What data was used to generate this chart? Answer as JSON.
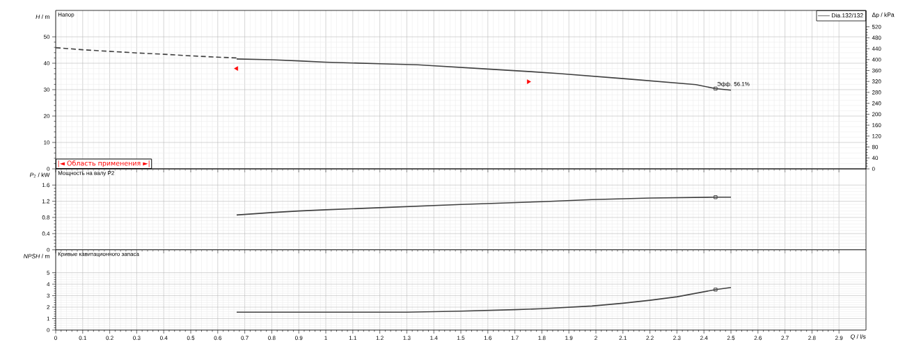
{
  "chart_data": [
    {
      "type": "line",
      "title": "Напор",
      "ylabel": "*H* / m",
      "y2label": "Δp / kPa",
      "xlim": [
        0,
        3
      ],
      "xticks": [
        0,
        0.1,
        0.2,
        0.3,
        0.4,
        0.5,
        0.6,
        0.7,
        0.8,
        0.9,
        1,
        1.1,
        1.2,
        1.3,
        1.4,
        1.5,
        1.6,
        1.7,
        1.8,
        1.9,
        2,
        2.1,
        2.2,
        2.3,
        2.4,
        2.5,
        2.6,
        2.7,
        2.8,
        2.9
      ],
      "ylim": [
        0,
        60
      ],
      "yticks": [
        0,
        10,
        20,
        30,
        40,
        50
      ],
      "y2lim": [
        0,
        580
      ],
      "y2ticks": [
        0,
        40,
        80,
        120,
        160,
        200,
        240,
        280,
        320,
        360,
        400,
        440,
        480,
        520
      ],
      "grid": true,
      "legend": "top right",
      "tick_labels": "y",
      "annotations": [
        {
          "text": "Эфф. 56.1%",
          "x": 2.443,
          "y": 30.4
        },
        "|◄ Область применения ►|"
      ],
      "series": [
        {
          "x": [
            0,
            0.1,
            0.2,
            0.3,
            0.4,
            0.5,
            0.6,
            0.67
          ],
          "values": [
            45.9,
            45.1,
            44.5,
            43.9,
            43.4,
            42.8,
            42.3,
            42.0
          ],
          "color": "#404040",
          "line_style": "dashed"
        },
        {
          "name": "Dia.132/132",
          "x": [
            0.67,
            0.8,
            0.9,
            1.0,
            1.2,
            1.34,
            1.6,
            1.76,
            1.86,
            2.11,
            2.37,
            2.443,
            2.5
          ],
          "values": [
            41.6,
            41.3,
            40.9,
            40.4,
            39.8,
            39.4,
            37.8,
            36.8,
            36.1,
            34.1,
            31.9,
            30.4,
            29.8
          ],
          "color": "#404040"
        },
        {
          "type": "scatter",
          "marker": "square",
          "x": [
            2.443
          ],
          "values": [
            30.4
          ],
          "color": "#404040"
        },
        {
          "type": "scatter",
          "marker": "triangle",
          "x": [
            0.67,
            1.75
          ],
          "values": [
            38,
            33
          ],
          "color": "#ff0000"
        }
      ]
    },
    {
      "type": "line",
      "title": "Мощность на валу P2",
      "ylabel": "*P*$_{2}$ / kW",
      "xlim": [
        0,
        3
      ],
      "xticks": [
        0,
        0.1,
        0.2,
        0.3,
        0.4,
        0.5,
        0.6,
        0.7,
        0.8,
        0.9,
        1,
        1.1,
        1.2,
        1.3,
        1.4,
        1.5,
        1.6,
        1.7,
        1.8,
        1.9,
        2,
        2.1,
        2.2,
        2.3,
        2.4,
        2.5,
        2.6,
        2.7,
        2.8,
        2.9
      ],
      "ylim": [
        0,
        2
      ],
      "yticks": [
        0,
        0.4,
        0.8,
        1.2,
        1.6
      ],
      "grid": true,
      "tick_labels": "y",
      "series": [
        {
          "x": [
            0.67,
            0.8,
            0.9,
            1.0,
            1.2,
            1.5,
            1.8,
            1.985,
            2.2,
            2.443,
            2.5
          ],
          "values": [
            0.86,
            0.92,
            0.96,
            0.99,
            1.04,
            1.12,
            1.19,
            1.24,
            1.28,
            1.3,
            1.3
          ],
          "color": "#404040"
        },
        {
          "type": "scatter",
          "marker": "square",
          "x": [
            2.443
          ],
          "values": [
            1.3
          ],
          "color": "#404040"
        }
      ]
    },
    {
      "type": "line",
      "title": "Кривые кавитационного запаса",
      "ylabel": "*NPSH* / m",
      "xlabel": "*Q* / l/s",
      "xlim": [
        0,
        3
      ],
      "xticks": [
        0,
        0.1,
        0.2,
        0.3,
        0.4,
        0.5,
        0.6,
        0.7,
        0.8,
        0.9,
        1,
        1.1,
        1.2,
        1.3,
        1.4,
        1.5,
        1.6,
        1.7,
        1.8,
        1.9,
        2,
        2.1,
        2.2,
        2.3,
        2.4,
        2.5,
        2.6,
        2.7,
        2.8,
        2.9
      ],
      "ylim": [
        0,
        7
      ],
      "yticks": [
        0,
        1,
        2,
        3,
        4,
        5
      ],
      "grid": true,
      "series": [
        {
          "x": [
            0.67,
            1.3,
            1.5,
            1.7,
            1.8,
            1.985,
            2.1,
            2.2,
            2.3,
            2.443,
            2.5
          ],
          "values": [
            1.56,
            1.56,
            1.65,
            1.78,
            1.86,
            2.1,
            2.34,
            2.6,
            2.9,
            3.53,
            3.71
          ],
          "color": "#404040"
        },
        {
          "type": "scatter",
          "marker": "square",
          "x": [
            2.443
          ],
          "values": [
            3.53
          ],
          "color": "#404040"
        }
      ]
    }
  ]
}
